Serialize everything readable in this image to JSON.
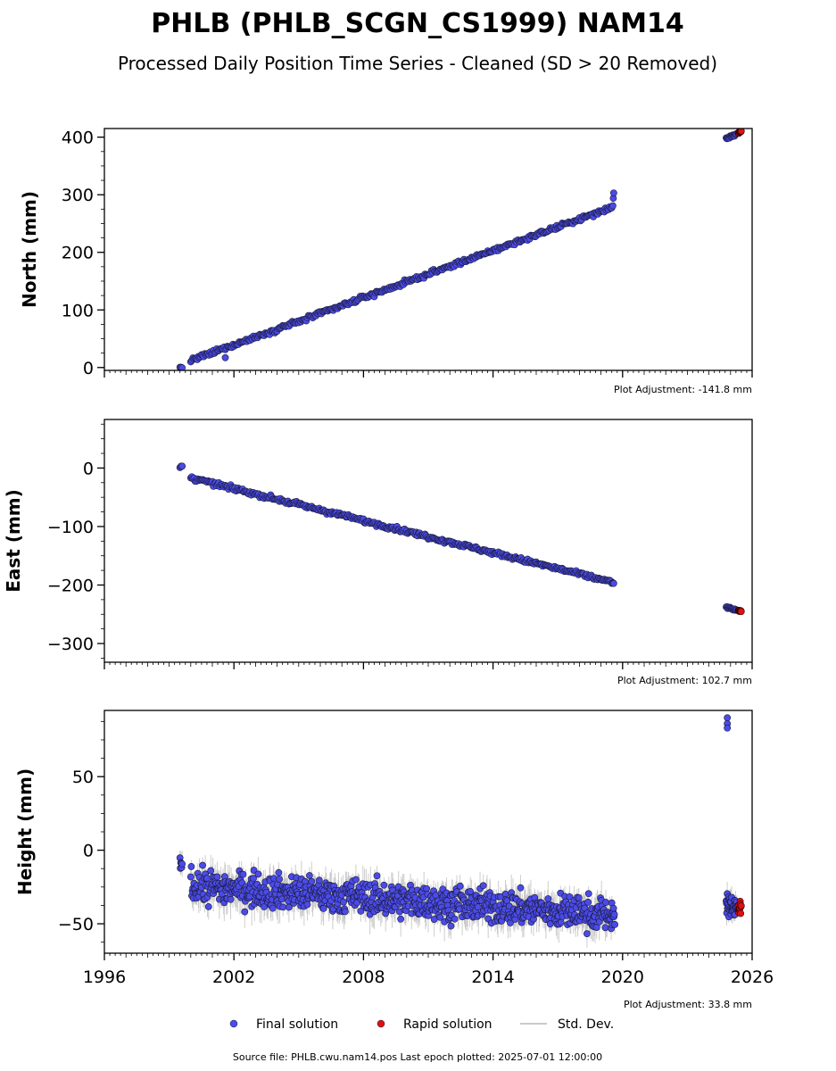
{
  "colors": {
    "final": "#4b4be8",
    "rapid": "#e01010",
    "stddev": "#b8b8b8",
    "marker_edge": "#1a1a3a"
  },
  "chart_data": {
    "type": "scatter",
    "title": "PHLB (PHLB_SCGN_CS1999) NAM14",
    "subtitle": "Processed Daily Position Time Series - Cleaned (SD > 20 Removed)",
    "xlim": [
      1996,
      2026
    ],
    "x_ticks": [
      1996,
      2002,
      2008,
      2014,
      2020,
      2026
    ],
    "x_tick_labels": [
      "1996",
      "2002",
      "2008",
      "2014",
      "2020",
      "2026"
    ],
    "legend": [
      {
        "key": "final",
        "label": "Final solution"
      },
      {
        "key": "rapid",
        "label": "Rapid solution"
      },
      {
        "key": "stddev",
        "label": "Std. Dev."
      }
    ],
    "legend_placement": "bottom",
    "footer": "Source file: PHLB.cwu.nam14.pos  Last epoch plotted: 2025-07-01 12:00:00",
    "panels": [
      {
        "name": "north",
        "ylabel": "North (mm)",
        "ylim": [
          -5,
          415
        ],
        "y_ticks": [
          0,
          100,
          200,
          300,
          400
        ],
        "y_tick_labels": [
          "0",
          "100",
          "200",
          "300",
          "400"
        ],
        "adjustment": "Plot Adjustment: -141.8 mm",
        "segments": [
          {
            "x": [
              1999.5,
              1999.6
            ],
            "y": [
              0,
              0
            ],
            "noise": 1,
            "sd": 2,
            "step": 0.05
          },
          {
            "x": [
              2000.0,
              2019.5
            ],
            "y": [
              12,
              278
            ],
            "noise": 2.5,
            "sd": 4,
            "step": 0.05
          },
          {
            "x": [
              2019.55,
              2019.6
            ],
            "y": [
              282,
              308
            ],
            "noise": 3,
            "sd": 4,
            "step": 0.02
          },
          {
            "x": [
              2024.8,
              2025.3
            ],
            "y": [
              398,
              406
            ],
            "noise": 1.5,
            "sd": 2,
            "step": 0.03
          }
        ],
        "outliers": [
          {
            "x": 2001.6,
            "y": 17
          }
        ],
        "rapid": {
          "x": [
            2025.35,
            2025.5
          ],
          "y": [
            407,
            410
          ],
          "noise": 1
        }
      },
      {
        "name": "east",
        "ylabel": "East (mm)",
        "ylim": [
          -332,
          83
        ],
        "y_ticks": [
          -300,
          -200,
          -100,
          0
        ],
        "y_tick_labels": [
          "−300",
          "−200",
          "−100",
          "0"
        ],
        "adjustment": "Plot Adjustment: 102.7 mm",
        "segments": [
          {
            "x": [
              1999.5,
              1999.6
            ],
            "y": [
              2,
              3
            ],
            "noise": 1,
            "sd": 2,
            "step": 0.05
          },
          {
            "x": [
              2000.0,
              2019.5
            ],
            "y": [
              -17,
              -195
            ],
            "noise": 2.5,
            "sd": 4,
            "step": 0.05
          },
          {
            "x": [
              2019.55,
              2019.6
            ],
            "y": [
              -196,
              -198
            ],
            "noise": 1.5,
            "sd": 3,
            "step": 0.02
          },
          {
            "x": [
              2024.8,
              2025.3
            ],
            "y": [
              -238,
              -243
            ],
            "noise": 1.2,
            "sd": 2,
            "step": 0.03
          }
        ],
        "outliers": [],
        "rapid": {
          "x": [
            2025.35,
            2025.5
          ],
          "y": [
            -244,
            -245
          ],
          "noise": 0.8
        }
      },
      {
        "name": "height",
        "ylabel": "Height (mm)",
        "ylim": [
          -70,
          95
        ],
        "y_ticks": [
          -50,
          0,
          50
        ],
        "y_tick_labels": [
          "−50",
          "0",
          "50"
        ],
        "adjustment": "Plot Adjustment: 33.8 mm",
        "segments": [
          {
            "x": [
              1999.5,
              1999.6
            ],
            "y": [
              -7,
              -10
            ],
            "noise": 5,
            "sd": 6,
            "step": 0.02
          },
          {
            "x": [
              2000.0,
              2019.5
            ],
            "y": [
              -24,
              -44
            ],
            "noise": 8,
            "sd": 9,
            "step": 0.025
          },
          {
            "x": [
              2019.5,
              2019.65
            ],
            "y": [
              -44,
              -44
            ],
            "noise": 5,
            "sd": 6,
            "step": 0.02
          },
          {
            "x": [
              2024.8,
              2025.3
            ],
            "y": [
              -38,
              -38
            ],
            "noise": 5,
            "sd": 6,
            "step": 0.012
          }
        ],
        "outliers": [
          {
            "x": 2024.85,
            "y": 90
          },
          {
            "x": 2024.85,
            "y": 86
          },
          {
            "x": 2024.85,
            "y": 83
          }
        ],
        "rapid": {
          "x": [
            2025.35,
            2025.5
          ],
          "y": [
            -39,
            -39
          ],
          "noise": 4
        }
      }
    ]
  }
}
